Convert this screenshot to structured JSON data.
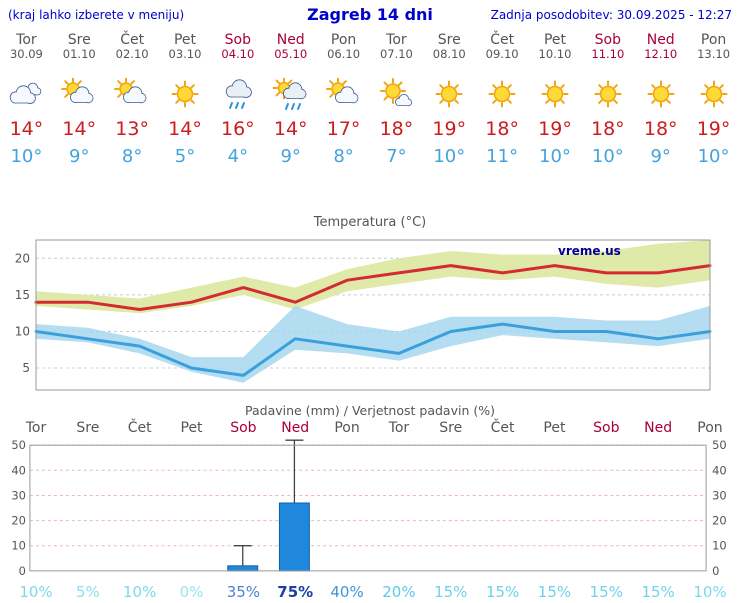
{
  "header": {
    "left_note": "(kraj lahko izberete v meniju)",
    "title": "Zagreb 14 dni",
    "last_update": "Zadnja posodobitev: 30.09.2025 - 12:27"
  },
  "watermark": "vreme.us",
  "forecast": {
    "days": [
      {
        "name": "Tor",
        "date": "30.09",
        "weekend": false,
        "icon": "cloudy",
        "high": "14°",
        "low": "10°"
      },
      {
        "name": "Sre",
        "date": "01.10",
        "weekend": false,
        "icon": "partly",
        "high": "14°",
        "low": "9°"
      },
      {
        "name": "Čet",
        "date": "02.10",
        "weekend": false,
        "icon": "partly",
        "high": "13°",
        "low": "8°"
      },
      {
        "name": "Pet",
        "date": "03.10",
        "weekend": false,
        "icon": "sunny",
        "high": "14°",
        "low": "5°"
      },
      {
        "name": "Sob",
        "date": "04.10",
        "weekend": true,
        "icon": "rain",
        "high": "16°",
        "low": "4°"
      },
      {
        "name": "Ned",
        "date": "05.10",
        "weekend": true,
        "icon": "rain-sun",
        "high": "14°",
        "low": "9°"
      },
      {
        "name": "Pon",
        "date": "06.10",
        "weekend": false,
        "icon": "partly",
        "high": "17°",
        "low": "8°"
      },
      {
        "name": "Tor",
        "date": "07.10",
        "weekend": false,
        "icon": "mostly-sunny",
        "high": "18°",
        "low": "7°"
      },
      {
        "name": "Sre",
        "date": "08.10",
        "weekend": false,
        "icon": "sunny",
        "high": "19°",
        "low": "10°"
      },
      {
        "name": "Čet",
        "date": "09.10",
        "weekend": false,
        "icon": "sunny",
        "high": "18°",
        "low": "11°"
      },
      {
        "name": "Pet",
        "date": "10.10",
        "weekend": false,
        "icon": "sunny",
        "high": "19°",
        "low": "10°"
      },
      {
        "name": "Sob",
        "date": "11.10",
        "weekend": true,
        "icon": "sunny",
        "high": "18°",
        "low": "10°"
      },
      {
        "name": "Ned",
        "date": "12.10",
        "weekend": true,
        "icon": "sunny",
        "high": "18°",
        "low": "9°"
      },
      {
        "name": "Pon",
        "date": "13.10",
        "weekend": false,
        "icon": "sunny",
        "high": "19°",
        "low": "10°"
      }
    ]
  },
  "chart_data": [
    {
      "type": "line",
      "title": "Temperatura (°C)",
      "categories": [
        "Tor 30.09",
        "Sre 01.10",
        "Čet 02.10",
        "Pet 03.10",
        "Sob 04.10",
        "Ned 05.10",
        "Pon 06.10",
        "Tor 07.10",
        "Sre 08.10",
        "Čet 09.10",
        "Pet 10.10",
        "Sob 11.10",
        "Ned 12.10",
        "Pon 13.10"
      ],
      "ylim": [
        2,
        22.5
      ],
      "yticks": [
        5,
        10,
        15,
        20
      ],
      "grid": true,
      "legend": false,
      "series": [
        {
          "name": "max temperature",
          "color": "#d42b33",
          "values": [
            14,
            14,
            13,
            14,
            16,
            14,
            17,
            18,
            19,
            18,
            19,
            18,
            18,
            19
          ]
        },
        {
          "name": "min temperature",
          "color": "#3aa0dd",
          "values": [
            10,
            9,
            8,
            5,
            4,
            9,
            8,
            7,
            10,
            11,
            10,
            10,
            9,
            10
          ]
        }
      ],
      "bands": [
        {
          "name": "max temperature range",
          "color": "#dfe9a8",
          "upper": [
            15.5,
            15,
            14.5,
            16,
            17.5,
            16,
            18.5,
            20,
            21,
            20.5,
            20.5,
            21,
            22,
            22.5
          ],
          "lower": [
            13.5,
            13,
            12.5,
            13.5,
            15,
            13,
            15.5,
            16.5,
            17.5,
            17,
            17.5,
            16.5,
            16,
            17
          ]
        },
        {
          "name": "min temperature range",
          "color": "#a5d5ef",
          "upper": [
            11,
            10.5,
            9,
            6.5,
            6.5,
            13.5,
            11,
            10,
            12,
            12,
            12,
            11.5,
            11.5,
            13.5
          ],
          "lower": [
            9,
            8.5,
            7,
            4.5,
            3,
            7.5,
            7,
            6,
            8,
            9.5,
            9,
            8.5,
            8,
            9
          ]
        }
      ]
    },
    {
      "type": "bar",
      "title": "Padavine (mm) / Verjetnost padavin (%)",
      "categories": [
        "Tor",
        "Sre",
        "Čet",
        "Pet",
        "Sob",
        "Ned",
        "Pon",
        "Tor",
        "Sre",
        "Čet",
        "Pet",
        "Sob",
        "Ned",
        "Pon"
      ],
      "weekend_flags": [
        false,
        false,
        false,
        false,
        true,
        true,
        false,
        false,
        false,
        false,
        false,
        true,
        true,
        false
      ],
      "values_mm": [
        0,
        0,
        0,
        0,
        2,
        27,
        0,
        0,
        0,
        0,
        0,
        0,
        0,
        0
      ],
      "whisker_max_mm": [
        0,
        0,
        0,
        0,
        10,
        52,
        0,
        0,
        0,
        0,
        0,
        0,
        0,
        0
      ],
      "bar_color": "#1f88dd",
      "ylim": [
        0,
        52
      ],
      "yticks": [
        0,
        10,
        20,
        30,
        40,
        50
      ],
      "probabilities": [
        {
          "text": "10%",
          "color": "#7dd8ec",
          "bold": false
        },
        {
          "text": "5%",
          "color": "#8ddef0",
          "bold": false
        },
        {
          "text": "10%",
          "color": "#7dd8ec",
          "bold": false
        },
        {
          "text": "0%",
          "color": "#9ce4f2",
          "bold": false
        },
        {
          "text": "35%",
          "color": "#4e7fd2",
          "bold": false
        },
        {
          "text": "75%",
          "color": "#1e3f9e",
          "bold": true
        },
        {
          "text": "40%",
          "color": "#3f96d9",
          "bold": false
        },
        {
          "text": "20%",
          "color": "#5ec8e6",
          "bold": false
        },
        {
          "text": "15%",
          "color": "#6fd2ea",
          "bold": false
        },
        {
          "text": "15%",
          "color": "#6fd2ea",
          "bold": false
        },
        {
          "text": "15%",
          "color": "#6fd2ea",
          "bold": false
        },
        {
          "text": "15%",
          "color": "#6fd2ea",
          "bold": false
        },
        {
          "text": "15%",
          "color": "#6fd2ea",
          "bold": false
        },
        {
          "text": "10%",
          "color": "#7dd8ec",
          "bold": false
        }
      ]
    }
  ],
  "colors": {
    "header_text": "#0000cc",
    "weekday_text": "#555555",
    "weekend_text": "#aa0033",
    "high_temp": "#cc1c1c",
    "low_temp": "#44a3dc",
    "watermark": "#000099",
    "axis_text": "#555555",
    "temp_grid": "#cccccc",
    "precip_grid": "#eab8b8",
    "frame": "#999999",
    "bar_border": "#0f5da8",
    "whisker": "#444444"
  }
}
